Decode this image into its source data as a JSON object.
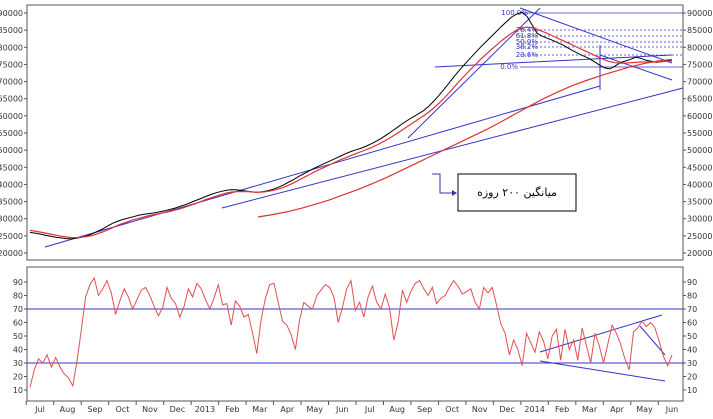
{
  "chart_data": [
    {
      "type": "line",
      "panel": "price",
      "ylim": [
        20000,
        90000
      ],
      "y_ticks": [
        20000,
        25000,
        30000,
        35000,
        40000,
        45000,
        50000,
        55000,
        60000,
        65000,
        70000,
        75000,
        80000,
        85000,
        90000
      ],
      "y_tick_labels": [
        "20000",
        "25000",
        "30000",
        "35000",
        "40000",
        "45000",
        "50000",
        "55000",
        "60000",
        "65000",
        "70000",
        "75000",
        "80000",
        "85000",
        "90000"
      ],
      "x_month_labels": [
        "Jul",
        "Aug",
        "Sep",
        "Oct",
        "Nov",
        "Dec",
        "2013",
        "Feb",
        "Mar",
        "Apr",
        "May",
        "Jun",
        "Jul",
        "Aug",
        "Sep",
        "Oct",
        "Nov",
        "Dec",
        "2014",
        "Feb",
        "Mar",
        "Apr",
        "May",
        "Jun"
      ],
      "series": [
        {
          "role": "price",
          "color": "#000000",
          "values": [
            26000,
            25800,
            25500,
            25200,
            24900,
            24600,
            24400,
            24200,
            24100,
            24300,
            24600,
            25000,
            25600,
            26300,
            27000,
            27900,
            28700,
            29300,
            29800,
            30200,
            30600,
            31000,
            31300,
            31500,
            31700,
            32000,
            32300,
            32700,
            33100,
            33600,
            34100,
            34700,
            35300,
            35900,
            36500,
            37100,
            37600,
            38000,
            38300,
            38500,
            38400,
            38200,
            38000,
            37800,
            37700,
            37900,
            38200,
            38600,
            39200,
            39900,
            40700,
            41500,
            42400,
            43200,
            44000,
            44800,
            45500,
            46200,
            46900,
            47600,
            48300,
            49000,
            49600,
            50100,
            50600,
            51200,
            51900,
            52700,
            53600,
            54600,
            55600,
            56700,
            57800,
            58800,
            59700,
            60600,
            61500,
            62800,
            64300,
            66000,
            67800,
            69700,
            71600,
            73400,
            75100,
            76800,
            78400,
            80000,
            81500,
            83000,
            84500,
            86000,
            87400,
            88800,
            89700,
            90200,
            89000,
            86500,
            84000,
            83200,
            82600,
            82000,
            81300,
            80600,
            79700,
            78900,
            78100,
            77400,
            76700,
            75800,
            74800,
            74000,
            73700,
            74500,
            75500,
            76000,
            76500,
            77100,
            76800,
            76200,
            75900,
            75600,
            75800,
            76000,
            76400
          ]
        },
        {
          "role": "ma-short",
          "color": "#dd3333",
          "values": [
            26600,
            26400,
            26100,
            25800,
            25500,
            25200,
            24900,
            24700,
            24500,
            24500,
            24600,
            24800,
            25100,
            25600,
            26100,
            26700,
            27400,
            28100,
            28700,
            29200,
            29700,
            30100,
            30500,
            30900,
            31200,
            31500,
            31800,
            32100,
            32500,
            32900,
            33400,
            33900,
            34400,
            35000,
            35600,
            36100,
            36600,
            37100,
            37500,
            37800,
            37900,
            37900,
            37900,
            37800,
            37700,
            37800,
            38000,
            38300,
            38700,
            39200,
            39800,
            40500,
            41300,
            42100,
            42900,
            43700,
            44400,
            45100,
            45800,
            46500,
            47200,
            47800,
            48400,
            49000,
            49600,
            50200,
            50800,
            51500,
            52300,
            53100,
            54000,
            55000,
            56000,
            57000,
            58000,
            59000,
            60000,
            61100,
            62300,
            63700,
            65200,
            66800,
            68500,
            70200,
            71800,
            73400,
            74900,
            76400,
            77800,
            79200,
            80500,
            81800,
            83000,
            84100,
            85000,
            85600,
            85900,
            85700,
            85200,
            84600,
            84000,
            83300,
            82600,
            81900,
            81200,
            80500,
            79800,
            79100,
            78400,
            77700,
            77000,
            76300,
            75800,
            75500,
            75400,
            75400,
            75500,
            75600,
            75700,
            75700,
            75700,
            75700,
            75800,
            75900,
            76000
          ]
        },
        {
          "role": "ma-200",
          "color": "#dd3333",
          "values": [
            30500,
            31200,
            32000,
            33000,
            34200,
            35500,
            37000,
            38500,
            40200,
            42000,
            44000,
            46000,
            48000,
            50000,
            52000,
            54000,
            56000,
            58200,
            60500,
            62800,
            65000,
            67000,
            68800,
            70300,
            71700,
            73000,
            74200,
            75200,
            76000,
            76500
          ]
        }
      ],
      "fibonacci_labels": [
        "100.0%",
        "76.4%",
        "61.8%",
        "50.0%",
        "38.2%",
        "23.6%",
        "0.0%"
      ],
      "annotation": "میانگین ۲۰۰ روزه"
    },
    {
      "type": "line",
      "panel": "rsi",
      "ylim": [
        5,
        95
      ],
      "y_ticks": [
        10,
        20,
        30,
        40,
        50,
        60,
        70,
        80,
        90
      ],
      "y_tick_labels": [
        "10",
        "20",
        "30",
        "40",
        "50",
        "60",
        "70",
        "80",
        "90"
      ],
      "reference_lines": [
        70,
        30
      ],
      "series": [
        {
          "role": "rsi",
          "color": "#e05050",
          "values": [
            12,
            25,
            33,
            30,
            36,
            27,
            34,
            27,
            22,
            19,
            13,
            32,
            55,
            79,
            88,
            93,
            80,
            85,
            91,
            82,
            66,
            76,
            85,
            79,
            70,
            77,
            84,
            86,
            80,
            72,
            65,
            71,
            86,
            78,
            74,
            64,
            72,
            85,
            79,
            89,
            85,
            77,
            70,
            78,
            88,
            73,
            74,
            58,
            76,
            72,
            64,
            66,
            52,
            37,
            62,
            78,
            88,
            89,
            75,
            61,
            58,
            51,
            40,
            62,
            75,
            72,
            70,
            80,
            84,
            88,
            86,
            79,
            60,
            71,
            85,
            91,
            69,
            75,
            64,
            79,
            87,
            75,
            70,
            81,
            71,
            47,
            60,
            84,
            75,
            83,
            89,
            91,
            85,
            80,
            86,
            74,
            78,
            80,
            86,
            91,
            87,
            81,
            83,
            85,
            75,
            70,
            86,
            82,
            86,
            73,
            59,
            52,
            36,
            47,
            40,
            28,
            52,
            45,
            38,
            53,
            46,
            33,
            50,
            55,
            32,
            55,
            40,
            47,
            32,
            56,
            43,
            30,
            52,
            43,
            30,
            44,
            58,
            52,
            44,
            33,
            25,
            53,
            56,
            61,
            57,
            60,
            56,
            46,
            35,
            28,
            36
          ]
        }
      ]
    }
  ]
}
